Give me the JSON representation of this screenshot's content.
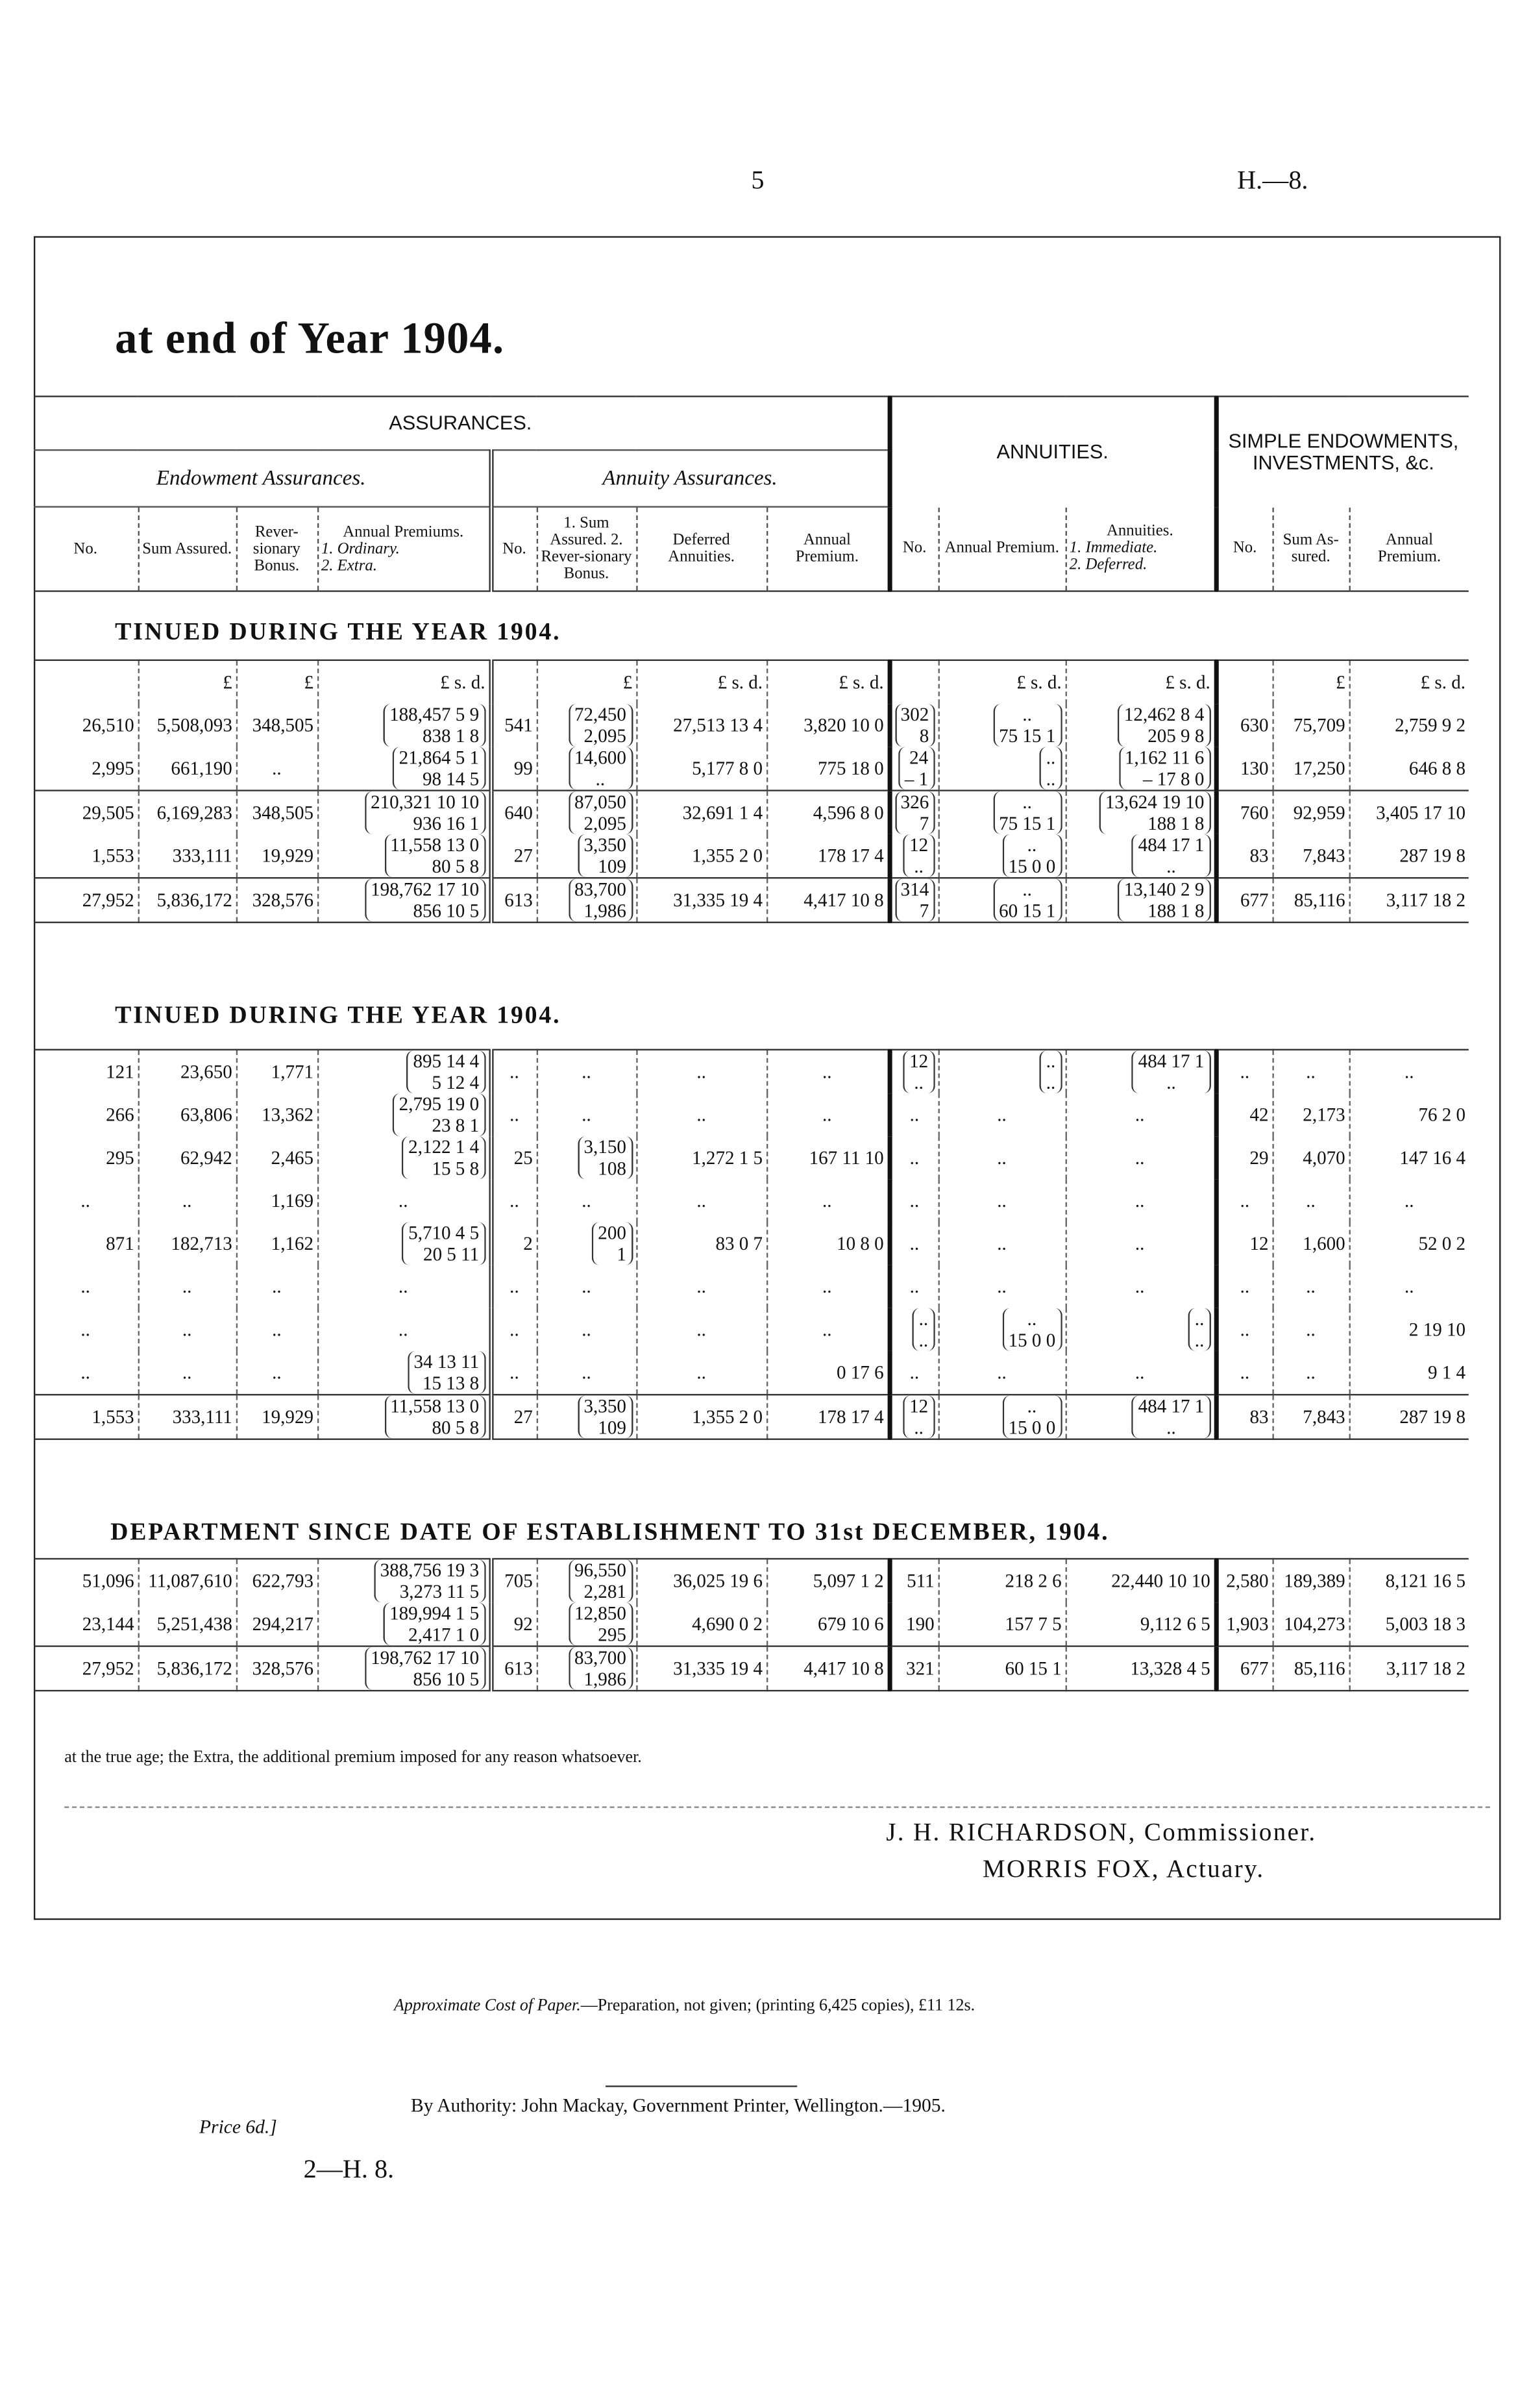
{
  "page_number": "5",
  "doc_ref": "H.—8.",
  "title": "at end of Year 1904.",
  "header": {
    "assurances": "ASSURANCES.",
    "annuities": "ANNUITIES.",
    "simple": "SIMPLE ENDOWMENTS, INVESTMENTS, &c.",
    "endowment": "Endowment Assurances.",
    "annuity_assurances": "Annuity Assurances.",
    "columns": [
      "No.",
      "Sum Assured.",
      "Rever-sionary Bonus.",
      "Annual Premiums.",
      "No.",
      "1. Sum Assured. 2. Rever-sionary Bonus.",
      "Deferred Annuities.",
      "Annual Premium.",
      "No.",
      "Annual Premium.",
      "Annuities.",
      "No.",
      "Sum As-sured.",
      "Annual Premium."
    ],
    "col4_notes": [
      "1. Ordinary.",
      "2. Extra."
    ],
    "col11_notes": [
      "1. Immediate.",
      "2. Deferred."
    ]
  },
  "units": [
    "",
    "£",
    "£",
    "£ s. d.",
    "",
    "£",
    "£ s. d.",
    "£ s. d.",
    "",
    "£ s. d.",
    "£ s. d.",
    "",
    "£",
    "£ s. d."
  ],
  "section1": {
    "title": "TINUED DURING THE YEAR 1904.",
    "rows": [
      [
        "26,510",
        "5,508,093",
        "348,505",
        [
          "188,457 5 9",
          "838 1 8"
        ],
        "541",
        [
          "72,450",
          "2,095"
        ],
        "27,513 13 4",
        "3,820 10 0",
        [
          "302",
          "8"
        ],
        [
          "..",
          "75 15 1"
        ],
        [
          "12,462 8 4",
          "205 9 8"
        ],
        "630",
        "75,709",
        "2,759 9 2"
      ],
      [
        "2,995",
        "661,190",
        "..",
        [
          "21,864 5 1",
          "98 14 5"
        ],
        "99",
        [
          "14,600",
          ".."
        ],
        "5,177 8 0",
        "775 18 0",
        [
          "24",
          "– 1"
        ],
        [
          "..",
          ".."
        ],
        [
          "1,162 11 6",
          "– 17 8 0"
        ],
        "130",
        "17,250",
        "646 8 8"
      ],
      [
        "29,505",
        "6,169,283",
        "348,505",
        [
          "210,321 10 10",
          "936 16 1"
        ],
        "640",
        [
          "87,050",
          "2,095"
        ],
        "32,691 1 4",
        "4,596 8 0",
        [
          "326",
          "7"
        ],
        [
          "..",
          "75 15 1"
        ],
        [
          "13,624 19 10",
          "188 1 8"
        ],
        "760",
        "92,959",
        "3,405 17 10"
      ],
      [
        "1,553",
        "333,111",
        "19,929",
        [
          "11,558 13 0",
          "80 5 8"
        ],
        "27",
        [
          "3,350",
          "109"
        ],
        "1,355 2 0",
        "178 17 4",
        [
          "12",
          ".."
        ],
        [
          "..",
          "15 0 0"
        ],
        [
          "484 17 1",
          ".."
        ],
        "83",
        "7,843",
        "287 19 8"
      ],
      [
        "27,952",
        "5,836,172",
        "328,576",
        [
          "198,762 17 10",
          "856 10 5"
        ],
        "613",
        [
          "83,700",
          "1,986"
        ],
        "31,335 19 4",
        "4,417 10 8",
        [
          "314",
          "7"
        ],
        [
          "..",
          "60 15 1"
        ],
        [
          "13,140 2 9",
          "188 1 8"
        ],
        "677",
        "85,116",
        "3,117 18 2"
      ]
    ]
  },
  "section2": {
    "title": "TINUED DURING THE YEAR 1904.",
    "rows": [
      [
        "121",
        "23,650",
        "1,771",
        [
          "895 14 4",
          "5 12 4"
        ],
        "..",
        "..",
        "..",
        "..",
        [
          "12",
          ".."
        ],
        [
          "..",
          ".."
        ],
        [
          "484 17 1",
          ".."
        ],
        "..",
        "..",
        ".."
      ],
      [
        "266",
        "63,806",
        "13,362",
        [
          "2,795 19 0",
          "23 8 1"
        ],
        "..",
        "..",
        "..",
        "..",
        "..",
        "..",
        "..",
        "42",
        "2,173",
        "76 2 0"
      ],
      [
        "295",
        "62,942",
        "2,465",
        [
          "2,122 1 4",
          "15 5 8"
        ],
        "25",
        [
          "3,150",
          "108"
        ],
        "1,272 1 5",
        "167 11 10",
        "..",
        "..",
        "..",
        "29",
        "4,070",
        "147 16 4"
      ],
      [
        "..",
        "..",
        "1,169",
        "..",
        "..",
        "..",
        "..",
        "..",
        "..",
        "..",
        "..",
        "..",
        "..",
        ".."
      ],
      [
        "871",
        "182,713",
        "1,162",
        [
          "5,710 4 5",
          "20 5 11"
        ],
        "2",
        [
          "200",
          "1"
        ],
        "83 0 7",
        "10 8 0",
        "..",
        "..",
        "..",
        "12",
        "1,600",
        "52 0 2"
      ],
      [
        "..",
        "..",
        "..",
        "..",
        "..",
        "..",
        "..",
        "..",
        "..",
        "..",
        "..",
        "..",
        "..",
        ".."
      ],
      [
        "..",
        "..",
        "..",
        "..",
        "..",
        "..",
        "..",
        "..",
        [
          "..",
          ".."
        ],
        [
          "..",
          "15 0 0"
        ],
        [
          "..",
          ".."
        ],
        "..",
        "..",
        "2 19 10"
      ],
      [
        "..",
        "..",
        "..",
        [
          "34 13 11",
          "15 13 8"
        ],
        "..",
        "..",
        "..",
        "0 17 6",
        "..",
        "..",
        "..",
        "..",
        "..",
        "9 1 4"
      ],
      [
        "1,553",
        "333,111",
        "19,929",
        [
          "11,558 13 0",
          "80 5 8"
        ],
        "27",
        [
          "3,350",
          "109"
        ],
        "1,355 2 0",
        "178 17 4",
        [
          "12",
          ".."
        ],
        [
          "..",
          "15 0 0"
        ],
        [
          "484 17 1",
          ".."
        ],
        "83",
        "7,843",
        "287 19 8"
      ]
    ]
  },
  "section3": {
    "title": "DEPARTMENT SINCE DATE OF ESTABLISHMENT TO 31st DECEMBER, 1904.",
    "rows": [
      [
        "51,096",
        "11,087,610",
        "622,793",
        [
          "388,756 19 3",
          "3,273 11 5"
        ],
        "705",
        [
          "96,550",
          "2,281"
        ],
        "36,025 19 6",
        "5,097 1 2",
        "511",
        "218 2 6",
        "22,440 10 10",
        "2,580",
        "189,389",
        "8,121 16 5"
      ],
      [
        "23,144",
        "5,251,438",
        "294,217",
        [
          "189,994 1 5",
          "2,417 1 0"
        ],
        "92",
        [
          "12,850",
          "295"
        ],
        "4,690 0 2",
        "679 10 6",
        "190",
        "157 7 5",
        "9,112 6 5",
        "1,903",
        "104,273",
        "5,003 18 3"
      ],
      [
        "27,952",
        "5,836,172",
        "328,576",
        [
          "198,762 17 10",
          "856 10 5"
        ],
        "613",
        [
          "83,700",
          "1,986"
        ],
        "31,335 19 4",
        "4,417 10 8",
        "321",
        "60 15 1",
        "13,328 4 5",
        "677",
        "85,116",
        "3,117 18 2"
      ]
    ]
  },
  "footnote": "at the true age; the Extra, the additional premium imposed for any reason whatsoever.",
  "signatures": [
    "J. H. RICHARDSON, Commissioner.",
    "MORRIS FOX, Actuary."
  ],
  "paper_cost_label": "Approximate Cost of Paper.",
  "paper_cost": "—Preparation, not given; (printing 6,425 copies), £11 12s.",
  "authority": "By Authority: John Mackay, Government Printer, Wellington.—1905.",
  "price": "Price 6d.]",
  "footer_ref": "2—H. 8."
}
